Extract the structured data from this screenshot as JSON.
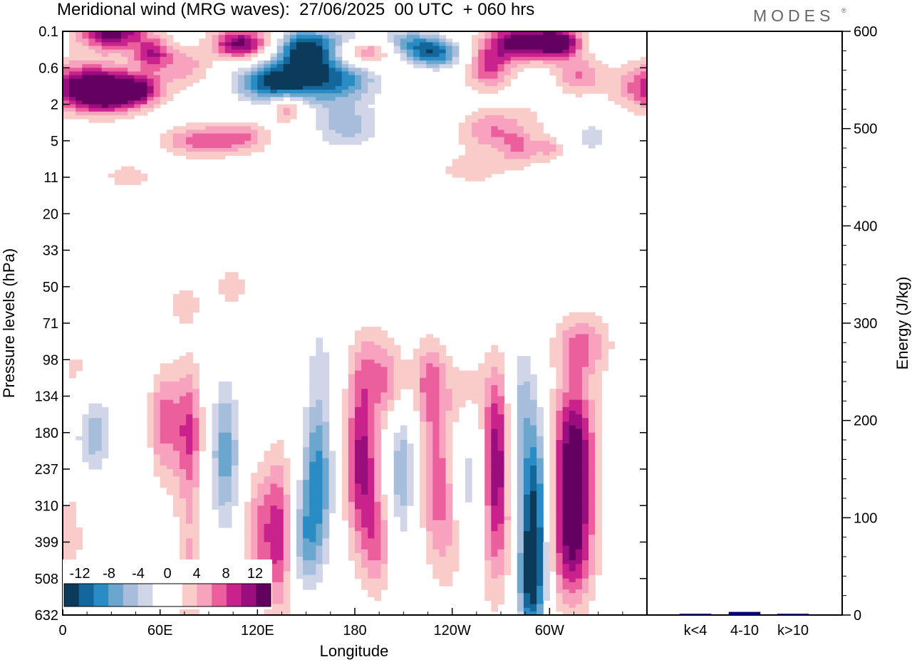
{
  "header": {
    "title": "Meridional wind (MRG waves):  27/06/2025  00 UTC  + 060 hrs",
    "brand": "MODES",
    "brand_mark": "®"
  },
  "chart_data": [
    {
      "type": "heatmap",
      "title": "Meridional wind (MRG waves):  27/06/2025  00 UTC  + 060 hrs",
      "xlabel": "Longitude",
      "ylabel": "Pressure levels (hPa)",
      "x_ticks": [
        "0",
        "60E",
        "120E",
        "180",
        "120W",
        "60W"
      ],
      "y_ticks": [
        "0.1",
        "0.6",
        "2",
        "5",
        "11",
        "20",
        "33",
        "50",
        "71",
        "98",
        "134",
        "180",
        "237",
        "310",
        "399",
        "508",
        "632"
      ],
      "colorbar": {
        "labels": [
          "-12",
          "-8",
          "-4",
          "0",
          "4",
          "8",
          "12"
        ],
        "levels": [
          -14,
          -12,
          -10,
          -8,
          -6,
          -4,
          -2,
          2,
          4,
          6,
          8,
          10,
          12,
          14
        ],
        "colors": [
          "#0c3a5a",
          "#13679b",
          "#2a8cc4",
          "#6aa6cd",
          "#a6bddb",
          "#d0d6e8",
          "#ffffff",
          "#ffffff",
          "#f9cbc9",
          "#f7a3bf",
          "#ec5f9d",
          "#c9228c",
          "#9a0d7e",
          "#64005f"
        ]
      }
    },
    {
      "type": "bar",
      "ylabel": "Energy (J/kg)",
      "categories": [
        "k<4",
        "4-10",
        "k>10"
      ],
      "values": [
        0.5,
        3,
        0.5
      ],
      "ylim": [
        0,
        600
      ],
      "y_ticks": [
        "0",
        "100",
        "200",
        "300",
        "400",
        "500",
        "600"
      ],
      "bar_colors": [
        "#00008b",
        "#00008b",
        "#00008b"
      ]
    }
  ]
}
